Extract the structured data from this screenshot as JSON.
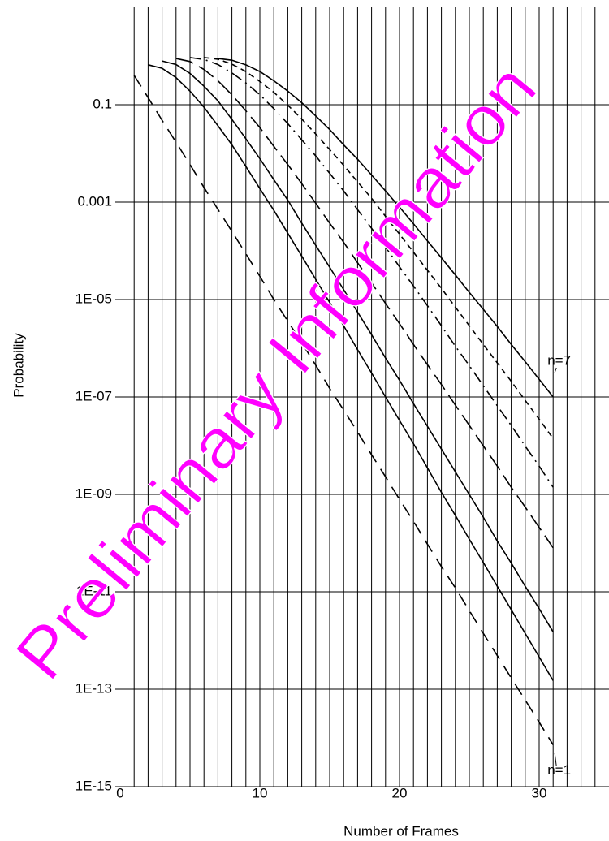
{
  "chart_data": {
    "type": "line",
    "xlabel": "Number of Frames",
    "ylabel": "Probability",
    "watermark": "Preliminary Information",
    "watermark_color": "#ff00ff",
    "log_y": true,
    "grid": true,
    "xlim": [
      0,
      35
    ],
    "xticks": [
      0,
      10,
      20,
      30
    ],
    "xgrid": [
      1,
      2,
      3,
      4,
      5,
      6,
      7,
      8,
      9,
      10,
      11,
      12,
      13,
      14,
      15,
      16,
      17,
      18,
      19,
      20,
      21,
      22,
      23,
      24,
      25,
      26,
      27,
      28,
      29,
      30,
      31,
      32,
      33,
      34
    ],
    "ylim": [
      1e-15,
      10
    ],
    "yticks": [
      {
        "value": 1e-15,
        "label": "1E-15"
      },
      {
        "value": 1e-13,
        "label": "1E-13"
      },
      {
        "value": 1e-11,
        "label": "1E-11"
      },
      {
        "value": 1e-09,
        "label": "1E-09"
      },
      {
        "value": 1e-07,
        "label": "1E-07"
      },
      {
        "value": 1e-05,
        "label": "1E-05"
      },
      0.001,
      0.1
    ],
    "x": [
      1,
      2,
      3,
      4,
      5,
      6,
      7,
      8,
      9,
      10,
      11,
      12,
      13,
      14,
      15,
      16,
      17,
      18,
      19,
      20,
      21,
      22,
      23,
      24,
      25,
      26,
      27,
      28,
      29,
      30,
      31
    ],
    "series": [
      {
        "name": "n=1",
        "color": "#000000",
        "dash": "16 10",
        "values": [
          0.4,
          0.14,
          0.048,
          0.017,
          0.0059,
          0.002,
          0.00071,
          0.00025,
          8.7e-05,
          3e-05,
          1e-05,
          3.6e-06,
          1.3e-06,
          4.5e-07,
          1.5e-07,
          5.4e-08,
          1.9e-08,
          6.5e-09,
          2.3e-09,
          7.9e-10,
          2.8e-10,
          9.5e-11,
          3.3e-11,
          1.2e-11,
          4.1e-12,
          1.4e-12,
          4.9e-13,
          1.7e-13,
          6e-14,
          2.1e-14,
          7.2e-15
        ]
      },
      {
        "color": "#000000",
        "dash": "none",
        "values": [
          null,
          0.66,
          0.56,
          0.36,
          0.19,
          0.089,
          0.037,
          0.015,
          0.0054,
          0.0019,
          0.00068,
          0.00023,
          7.8e-05,
          2.6e-05,
          8.7e-06,
          2.9e-06,
          9.3e-07,
          3.1e-07,
          1e-07,
          3.3e-08,
          1.1e-08,
          3.5e-09,
          1.1e-09,
          3.7e-10,
          1.2e-10,
          4e-11,
          1.3e-11,
          4.3e-12,
          1.4e-12,
          4.6e-13,
          1.5e-13
        ]
      },
      {
        "color": "#000000",
        "dash": "none",
        "values": [
          null,
          null,
          0.79,
          0.67,
          0.44,
          0.24,
          0.12,
          0.05,
          0.02,
          0.0078,
          0.0029,
          0.0011,
          0.00037,
          0.00013,
          4.6e-05,
          1.6e-05,
          5.5e-06,
          1.9e-06,
          6.3e-07,
          2.2e-07,
          7.3e-08,
          2.5e-08,
          8.5e-09,
          2.9e-09,
          9.9e-10,
          3.4e-10,
          1.1e-10,
          3.9e-11,
          1.3e-11,
          4.5e-12,
          1.5e-12
        ]
      },
      {
        "color": "#000000",
        "dash": "22 8",
        "values": [
          null,
          null,
          null,
          0.89,
          0.77,
          0.53,
          0.31,
          0.16,
          0.075,
          0.034,
          0.014,
          0.0059,
          0.0024,
          0.00095,
          0.00037,
          0.00015,
          5.7e-05,
          2.2e-05,
          8.3e-06,
          3.2e-06,
          1.2e-06,
          4.6e-07,
          1.8e-07,
          6.8e-08,
          2.6e-08,
          9.9e-09,
          3.8e-09,
          1.4e-09,
          5.5e-10,
          2.1e-10,
          8e-11
        ]
      },
      {
        "color": "#000000",
        "dash": "14 6 2 6",
        "values": [
          null,
          null,
          null,
          null,
          0.93,
          0.85,
          0.67,
          0.45,
          0.28,
          0.16,
          0.083,
          0.041,
          0.019,
          0.0089,
          0.0039,
          0.0017,
          0.0007,
          0.00029,
          0.00012,
          4.7e-05,
          1.9e-05,
          7.5e-06,
          2.9e-06,
          1.1e-06,
          4.4e-07,
          1.7e-07,
          6.6e-08,
          2.6e-08,
          9.8e-09,
          3.8e-09,
          1.4e-09
        ]
      },
      {
        "color": "#000000",
        "dash": "7 5",
        "values": [
          null,
          null,
          null,
          null,
          null,
          0.93,
          0.86,
          0.68,
          0.48,
          0.3,
          0.18,
          0.098,
          0.051,
          0.025,
          0.012,
          0.0057,
          0.0026,
          0.0012,
          0.00051,
          0.00022,
          9.4e-05,
          4e-05,
          1.7e-05,
          7e-06,
          2.9e-06,
          1.2e-06,
          5e-07,
          2.1e-07,
          8.5e-08,
          3.5e-08,
          1.4e-08
        ]
      },
      {
        "name": "n=7",
        "color": "#000000",
        "dash": "none",
        "values": [
          null,
          null,
          null,
          null,
          null,
          null,
          0.89,
          0.82,
          0.66,
          0.48,
          0.31,
          0.19,
          0.11,
          0.059,
          0.031,
          0.015,
          0.0076,
          0.0036,
          0.0017,
          0.00079,
          0.00036,
          0.00016,
          7.2e-05,
          3.2e-05,
          1.4e-05,
          6.3e-06,
          2.8e-06,
          1.2e-06,
          5.3e-07,
          2.3e-07,
          1e-07
        ]
      }
    ]
  }
}
